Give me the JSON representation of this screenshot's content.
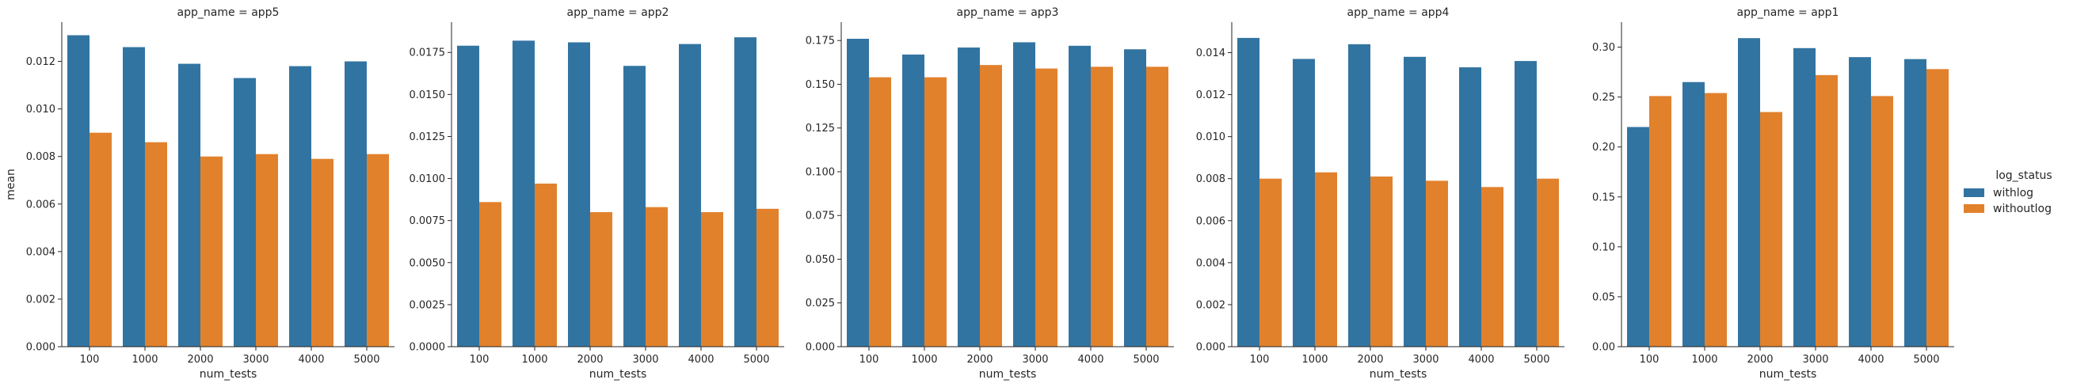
{
  "chart_data": {
    "type": "bar",
    "xlabel": "num_tests",
    "ylabel": "mean",
    "legend": {
      "title": "log_status",
      "placement": "right",
      "entries": [
        {
          "name": "withlog",
          "color": "#3274a1"
        },
        {
          "name": "withoutlog",
          "color": "#e1812c"
        }
      ]
    },
    "categories": [
      "100",
      "1000",
      "2000",
      "3000",
      "4000",
      "5000"
    ],
    "panels": [
      {
        "title": "app_name = app5",
        "ylim": [
          0,
          0.01365
        ],
        "yticks": [
          "0.000",
          "0.002",
          "0.004",
          "0.006",
          "0.008",
          "0.010",
          "0.012"
        ],
        "ytick_values": [
          0,
          0.002,
          0.004,
          0.006,
          0.008,
          0.01,
          0.012
        ],
        "series": [
          {
            "name": "withlog",
            "values": [
              0.0131,
              0.0126,
              0.0119,
              0.0113,
              0.0118,
              0.012
            ]
          },
          {
            "name": "withoutlog",
            "values": [
              0.009,
              0.0086,
              0.008,
              0.0081,
              0.0079,
              0.0081
            ]
          }
        ]
      },
      {
        "title": "app_name = app2",
        "ylim": [
          0,
          0.0193
        ],
        "yticks": [
          "0.0000",
          "0.0025",
          "0.0050",
          "0.0075",
          "0.0100",
          "0.0125",
          "0.0150",
          "0.0175"
        ],
        "ytick_values": [
          0,
          0.0025,
          0.005,
          0.0075,
          0.01,
          0.0125,
          0.015,
          0.0175
        ],
        "series": [
          {
            "name": "withlog",
            "values": [
              0.0179,
              0.0182,
              0.0181,
              0.0167,
              0.018,
              0.0184
            ]
          },
          {
            "name": "withoutlog",
            "values": [
              0.0086,
              0.0097,
              0.008,
              0.0083,
              0.008,
              0.0082
            ]
          }
        ]
      },
      {
        "title": "app_name = app3",
        "ylim": [
          0,
          0.1855
        ],
        "yticks": [
          "0.000",
          "0.025",
          "0.050",
          "0.075",
          "0.100",
          "0.125",
          "0.150",
          "0.175"
        ],
        "ytick_values": [
          0,
          0.025,
          0.05,
          0.075,
          0.1,
          0.125,
          0.15,
          0.175
        ],
        "series": [
          {
            "name": "withlog",
            "values": [
              0.176,
              0.167,
              0.171,
              0.174,
              0.172,
              0.17
            ]
          },
          {
            "name": "withoutlog",
            "values": [
              0.154,
              0.154,
              0.161,
              0.159,
              0.16,
              0.16
            ]
          }
        ]
      },
      {
        "title": "app_name = app4",
        "ylim": [
          0,
          0.01545
        ],
        "yticks": [
          "0.000",
          "0.002",
          "0.004",
          "0.006",
          "0.008",
          "0.010",
          "0.012",
          "0.014"
        ],
        "ytick_values": [
          0,
          0.002,
          0.004,
          0.006,
          0.008,
          0.01,
          0.012,
          0.014
        ],
        "series": [
          {
            "name": "withlog",
            "values": [
              0.0147,
              0.0137,
              0.0144,
              0.0138,
              0.0133,
              0.0136
            ]
          },
          {
            "name": "withoutlog",
            "values": [
              0.008,
              0.0083,
              0.0081,
              0.0079,
              0.0076,
              0.008
            ]
          }
        ]
      },
      {
        "title": "app_name = app1",
        "ylim": [
          0,
          0.325
        ],
        "yticks": [
          "0.00",
          "0.05",
          "0.10",
          "0.15",
          "0.20",
          "0.25",
          "0.30"
        ],
        "ytick_values": [
          0,
          0.05,
          0.1,
          0.15,
          0.2,
          0.25,
          0.3
        ],
        "series": [
          {
            "name": "withlog",
            "values": [
              0.22,
              0.265,
              0.309,
              0.299,
              0.29,
              0.288
            ]
          },
          {
            "name": "withoutlog",
            "values": [
              0.251,
              0.254,
              0.235,
              0.272,
              0.251,
              0.278
            ]
          }
        ]
      }
    ]
  }
}
